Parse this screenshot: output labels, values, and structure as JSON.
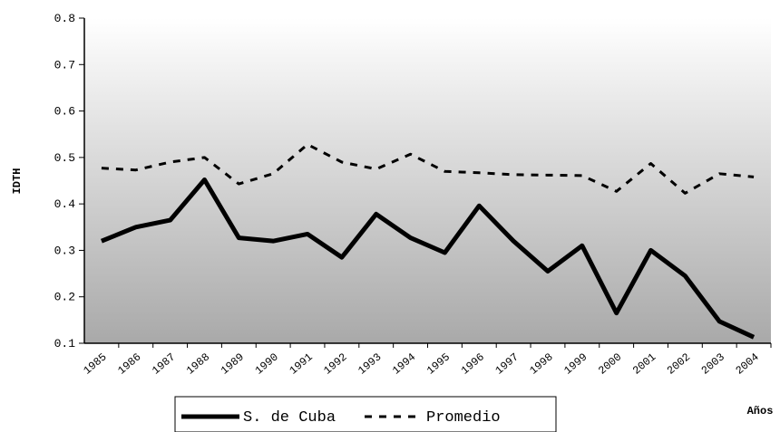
{
  "chart_data": {
    "type": "line",
    "y_label": "IDTH",
    "x_label": "Años",
    "categories": [
      "1985",
      "1986",
      "1987",
      "1988",
      "1989",
      "1990",
      "1991",
      "1992",
      "1993",
      "1994",
      "1995",
      "1996",
      "1997",
      "1998",
      "1999",
      "2000",
      "2001",
      "2002",
      "2003",
      "2004"
    ],
    "series": [
      {
        "name": "S. de Cuba",
        "color": "#000000",
        "dash": "solid",
        "values": [
          0.32,
          0.35,
          0.365,
          0.452,
          0.327,
          0.32,
          0.335,
          0.285,
          0.378,
          0.327,
          0.295,
          0.396,
          0.32,
          0.255,
          0.31,
          0.165,
          0.3,
          0.245,
          0.147,
          0.113
        ]
      },
      {
        "name": "Promedio",
        "color": "#000000",
        "dash": "dashed",
        "values": [
          0.477,
          0.473,
          0.49,
          0.5,
          0.443,
          0.465,
          0.528,
          0.49,
          0.475,
          0.507,
          0.47,
          0.467,
          0.463,
          0.462,
          0.461,
          0.427,
          0.487,
          0.423,
          0.465,
          0.458
        ]
      }
    ],
    "ylim": [
      0.1,
      0.8
    ],
    "yticks": [
      0.1,
      0.2,
      0.3,
      0.4,
      0.5,
      0.6,
      0.7,
      0.8
    ]
  }
}
